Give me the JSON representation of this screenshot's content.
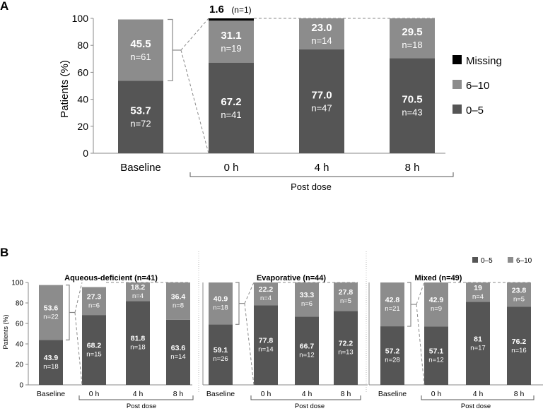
{
  "colors": {
    "low": "#555555",
    "high": "#8c8c8c",
    "missing": "#000000",
    "connector": "#8a8a8a"
  },
  "panel_a": {
    "letter": "A",
    "ylabel": "Patients (%)",
    "yticks": [
      "0",
      "20",
      "40",
      "60",
      "80",
      "100"
    ],
    "post_dose_label": "Post dose",
    "legend": [
      "Missing",
      "6–10",
      "0–5"
    ],
    "missing_label": {
      "value": "1.6",
      "count": "(n=1)"
    }
  },
  "panel_b": {
    "letter": "B",
    "ylabel": "Patients (%)",
    "yticks": [
      "0",
      "20",
      "40",
      "60",
      "80",
      "100"
    ],
    "post_dose_label": "Post dose",
    "legend": [
      "0–5",
      "6–10"
    ]
  },
  "chart_data": [
    {
      "type": "bar",
      "stacked": true,
      "title": "",
      "ylabel": "Patients (%)",
      "ylim": [
        0,
        100
      ],
      "categories": [
        "Baseline",
        "0 h",
        "4 h",
        "8 h"
      ],
      "series": [
        {
          "name": "0–5",
          "values": [
            53.7,
            67.2,
            77.0,
            70.5
          ],
          "labels": [
            "53.7",
            "67.2",
            "77.0",
            "70.5"
          ],
          "counts": [
            "n=72",
            "n=41",
            "n=47",
            "n=43"
          ]
        },
        {
          "name": "6–10",
          "values": [
            45.5,
            31.1,
            23.0,
            29.5
          ],
          "labels": [
            "45.5",
            "31.1",
            "23.0",
            "29.5"
          ],
          "counts": [
            "n=61",
            "n=19",
            "n=14",
            "n=18"
          ]
        },
        {
          "name": "Missing",
          "values": [
            0,
            1.6,
            0,
            0
          ],
          "labels": [
            "",
            "1.6",
            "",
            ""
          ],
          "counts": [
            "",
            "(n=1)",
            "",
            ""
          ]
        }
      ],
      "legend_position": "right"
    },
    {
      "type": "bar",
      "stacked": true,
      "title": "Aqueous-deficient (n=41)",
      "ylabel": "Patients (%)",
      "ylim": [
        0,
        100
      ],
      "categories": [
        "Baseline",
        "0 h",
        "4 h",
        "8 h"
      ],
      "series": [
        {
          "name": "0–5",
          "values": [
            43.9,
            68.2,
            81.8,
            63.6
          ],
          "labels": [
            "43.9",
            "68.2",
            "81.8",
            "63.6"
          ],
          "counts": [
            "n=18",
            "n=15",
            "n=18",
            "n=14"
          ]
        },
        {
          "name": "6–10",
          "values": [
            53.6,
            27.3,
            18.2,
            36.4
          ],
          "labels": [
            "53.6",
            "27.3",
            "18.2",
            "36.4"
          ],
          "counts": [
            "n=22",
            "n=6",
            "n=4",
            "n=8"
          ]
        }
      ]
    },
    {
      "type": "bar",
      "stacked": true,
      "title": "Evaporative (n=44)",
      "ylim": [
        0,
        100
      ],
      "categories": [
        "Baseline",
        "0 h",
        "4 h",
        "8 h"
      ],
      "series": [
        {
          "name": "0–5",
          "values": [
            59.1,
            77.8,
            66.7,
            72.2
          ],
          "labels": [
            "59.1",
            "77.8",
            "66.7",
            "72.2"
          ],
          "counts": [
            "n=26",
            "n=14",
            "n=12",
            "n=13"
          ]
        },
        {
          "name": "6–10",
          "values": [
            40.9,
            22.2,
            33.3,
            27.8
          ],
          "labels": [
            "40.9",
            "22.2",
            "33.3",
            "27.8"
          ],
          "counts": [
            "n=18",
            "n=4",
            "n=6",
            "n=5"
          ]
        }
      ]
    },
    {
      "type": "bar",
      "stacked": true,
      "title": "Mixed (n=49)",
      "ylim": [
        0,
        100
      ],
      "categories": [
        "Baseline",
        "0 h",
        "4 h",
        "8 h"
      ],
      "series": [
        {
          "name": "0–5",
          "values": [
            57.2,
            57.1,
            81,
            76.2
          ],
          "labels": [
            "57.2",
            "57.1",
            "81",
            "76.2"
          ],
          "counts": [
            "n=28",
            "n=12",
            "n=17",
            "n=16"
          ]
        },
        {
          "name": "6–10",
          "values": [
            42.8,
            42.9,
            19,
            23.8
          ],
          "labels": [
            "42.8",
            "42.9",
            "19",
            "23.8"
          ],
          "counts": [
            "n=21",
            "n=9",
            "n=4",
            "n=5"
          ]
        }
      ],
      "legend_position": "top-right"
    }
  ]
}
